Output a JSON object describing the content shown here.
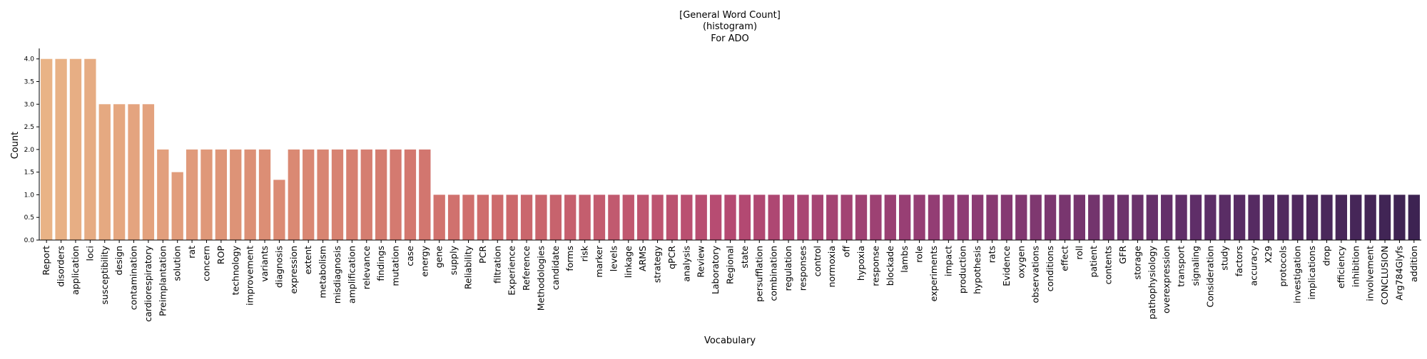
{
  "chart_data": {
    "type": "bar",
    "title": [
      "[General Word Count]",
      "(histogram)",
      "For ADO"
    ],
    "xlabel": "Vocabulary",
    "ylabel": "Count",
    "ylim": [
      0,
      4.2
    ],
    "yticks": [
      "0.0",
      "0.5",
      "1.0",
      "1.5",
      "2.0",
      "2.5",
      "3.0",
      "3.5",
      "4.0"
    ],
    "ytick_values": [
      0,
      0.5,
      1.0,
      1.5,
      2.0,
      2.5,
      3.0,
      3.5,
      4.0
    ],
    "grid": false,
    "legend": "none",
    "palette": [
      "#e9b386",
      "#db8c74",
      "#cd6a6c",
      "#b54a72",
      "#8f3c74",
      "#602f69",
      "#3d2352"
    ],
    "categories": [
      "Report",
      "disorders",
      "application",
      "loci",
      "susceptibility",
      "design",
      "contamination",
      "cardiorespiratory",
      "Preimplantation",
      "solution",
      "rat",
      "concern",
      "ROP",
      "technology",
      "improvement",
      "variants",
      "diagnosis",
      "expression",
      "extent",
      "metabolism",
      "misdiagnosis",
      "amplification",
      "relevance",
      "findings",
      "mutation",
      "case",
      "energy",
      "gene",
      "supply",
      "Reliability",
      "PCR",
      "filtration",
      "Experience",
      "Reference",
      "Methodologies",
      "candidate",
      "forms",
      "risk",
      "marker",
      "levels",
      "linkage",
      "ARMS",
      "strategy",
      "qPCR",
      "analysis",
      "Review",
      "Laboratory",
      "Regional",
      "state",
      "persufflation",
      "combination",
      "regulation",
      "responses",
      "control",
      "normoxia",
      "off",
      "hypoxia",
      "response",
      "blockade",
      "lambs",
      "role",
      "experiments",
      "impact",
      "production",
      "hypothesis",
      "rats",
      "Evidence",
      "oxygen",
      "observations",
      "conditions",
      "effect",
      "roll",
      "patient",
      "contents",
      "GFR",
      "storage",
      "pathophysiology",
      "overexpression",
      "transport",
      "signaling",
      "Consideration",
      "study",
      "factors",
      "accuracy",
      "X29",
      "protocols",
      "investigation",
      "implications",
      "drop",
      "efficiency",
      "inhibition",
      "involvement",
      "CONCLUSION",
      "Arg784Glyfs",
      "addition"
    ],
    "values": [
      4,
      4,
      4,
      4,
      3,
      3,
      3,
      3,
      2,
      1.5,
      2,
      2,
      2,
      2,
      2,
      2,
      1.33,
      2,
      2,
      2,
      2,
      2,
      2,
      2,
      2,
      2,
      2,
      1,
      1,
      1,
      1,
      1,
      1,
      1,
      1,
      1,
      1,
      1,
      1,
      1,
      1,
      1,
      1,
      1,
      1,
      1,
      1,
      1,
      1,
      1,
      1,
      1,
      1,
      1,
      1,
      1,
      1,
      1,
      1,
      1,
      1,
      1,
      1,
      1,
      1,
      1,
      1,
      1,
      1,
      1,
      1,
      1,
      1,
      1,
      1,
      1,
      1,
      1,
      1,
      1,
      1,
      1,
      1,
      1,
      1,
      1,
      1,
      1,
      1,
      1,
      1,
      1,
      1,
      1,
      1
    ]
  }
}
